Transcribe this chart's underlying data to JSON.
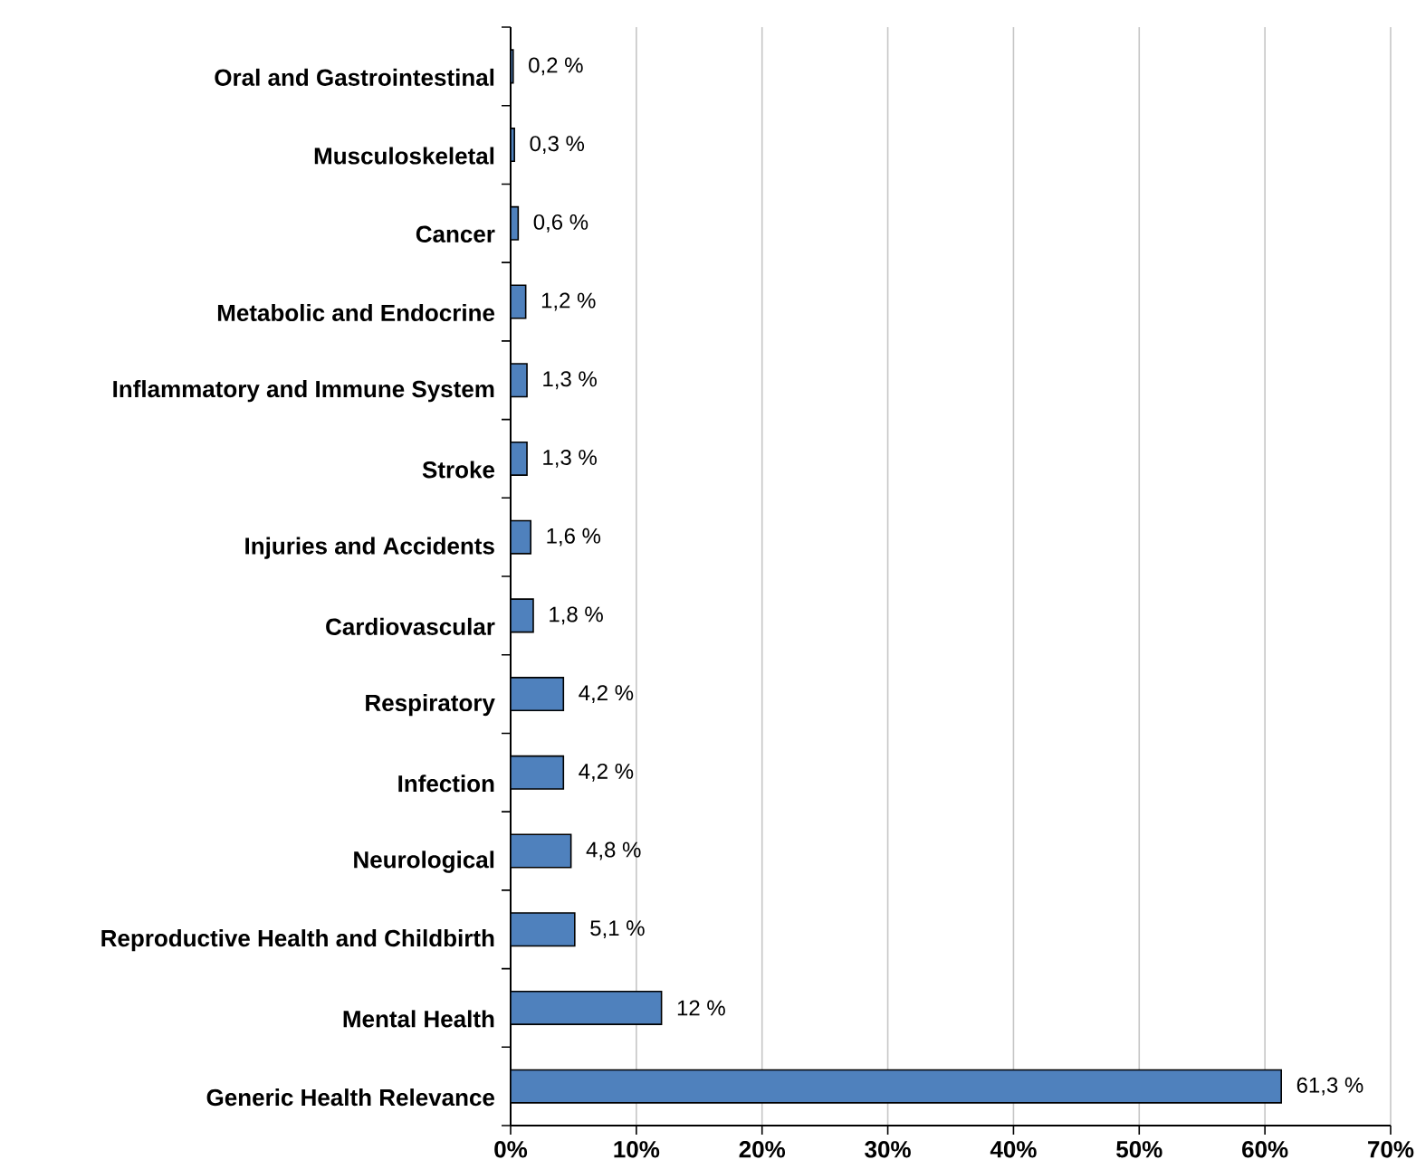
{
  "chart_data": {
    "type": "bar",
    "orientation": "horizontal",
    "categories": [
      "Oral and Gastrointestinal",
      "Musculoskeletal",
      "Cancer",
      "Metabolic and Endocrine",
      "Inflammatory and Immune System",
      "Stroke",
      "Injuries and Accidents",
      "Cardiovascular",
      "Respiratory",
      "Infection",
      "Neurological",
      "Reproductive Health and Childbirth",
      "Mental Health",
      "Generic Health Relevance"
    ],
    "values": [
      0.2,
      0.3,
      0.6,
      1.2,
      1.3,
      1.3,
      1.6,
      1.8,
      4.2,
      4.2,
      4.8,
      5.1,
      12,
      61.3
    ],
    "value_labels": [
      "0,2 %",
      "0,3 %",
      "0,6 %",
      "1,2 %",
      "1,3 %",
      "1,3 %",
      "1,6 %",
      "1,8 %",
      "4,2 %",
      "4,2 %",
      "4,8 %",
      "5,1 %",
      "12 %",
      "61,3 %"
    ],
    "color": "#4f81bd",
    "xlim": [
      0,
      70
    ],
    "xticks": [
      {
        "value": 0,
        "label": "0%"
      },
      {
        "value": 10,
        "label": "10%"
      },
      {
        "value": 20,
        "label": "20%"
      },
      {
        "value": 30,
        "label": "30%"
      },
      {
        "value": 40,
        "label": "40%"
      },
      {
        "value": 50,
        "label": "50%"
      },
      {
        "value": 60,
        "label": "60%"
      },
      {
        "value": 70,
        "label": "70%"
      }
    ],
    "grid": "x"
  }
}
